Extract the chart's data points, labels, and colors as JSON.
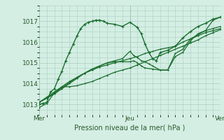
{
  "background_color": "#d4eee4",
  "grid_color": "#aacfbe",
  "line_color": "#1a6e2e",
  "marker_color": "#1a6e2e",
  "xlabel": "Pression niveau de la mer( hPa )",
  "ylim": [
    1012.5,
    1017.75
  ],
  "xlim": [
    0,
    48
  ],
  "yticks": [
    1013,
    1014,
    1015,
    1016,
    1017
  ],
  "xtick_positions": [
    0,
    24,
    48
  ],
  "xtick_labels": [
    "Mer",
    "Jeu",
    "Ven"
  ],
  "series": [
    {
      "points": [
        [
          0,
          1013.0
        ],
        [
          1,
          1013.05
        ],
        [
          2,
          1013.1
        ],
        [
          3,
          1013.6
        ],
        [
          4,
          1013.75
        ],
        [
          5,
          1014.2
        ],
        [
          6,
          1014.6
        ],
        [
          7,
          1015.1
        ],
        [
          8,
          1015.5
        ],
        [
          9,
          1015.9
        ],
        [
          10,
          1016.3
        ],
        [
          11,
          1016.65
        ],
        [
          12,
          1016.85
        ],
        [
          13,
          1016.95
        ],
        [
          14,
          1017.0
        ],
        [
          15,
          1017.05
        ],
        [
          16,
          1017.05
        ],
        [
          17,
          1017.0
        ],
        [
          18,
          1016.9
        ],
        [
          20,
          1016.85
        ],
        [
          22,
          1016.75
        ],
        [
          24,
          1016.95
        ],
        [
          26,
          1016.7
        ],
        [
          27,
          1016.4
        ],
        [
          28,
          1015.9
        ],
        [
          29,
          1015.5
        ],
        [
          30,
          1015.2
        ],
        [
          31,
          1015.1
        ],
        [
          32,
          1015.5
        ],
        [
          34,
          1015.6
        ],
        [
          36,
          1015.8
        ],
        [
          38,
          1016.2
        ],
        [
          40,
          1016.5
        ],
        [
          42,
          1016.75
        ],
        [
          44,
          1016.9
        ],
        [
          46,
          1017.1
        ],
        [
          48,
          1017.2
        ]
      ],
      "linewidth": 1.0,
      "markersize": 3
    },
    {
      "points": [
        [
          0,
          1012.85
        ],
        [
          2,
          1013.05
        ],
        [
          4,
          1013.55
        ],
        [
          6,
          1013.85
        ],
        [
          8,
          1013.85
        ],
        [
          10,
          1013.9
        ],
        [
          12,
          1014.0
        ],
        [
          14,
          1014.1
        ],
        [
          16,
          1014.25
        ],
        [
          18,
          1014.4
        ],
        [
          20,
          1014.55
        ],
        [
          22,
          1014.65
        ],
        [
          24,
          1014.75
        ],
        [
          26,
          1014.9
        ],
        [
          28,
          1015.05
        ],
        [
          30,
          1015.2
        ],
        [
          32,
          1015.35
        ],
        [
          34,
          1015.5
        ],
        [
          36,
          1015.65
        ],
        [
          38,
          1015.8
        ],
        [
          40,
          1015.95
        ],
        [
          42,
          1016.1
        ],
        [
          44,
          1016.3
        ],
        [
          46,
          1016.45
        ],
        [
          48,
          1016.6
        ]
      ],
      "linewidth": 0.9,
      "markersize": 2
    },
    {
      "points": [
        [
          0,
          1013.1
        ],
        [
          2,
          1013.35
        ],
        [
          4,
          1013.6
        ],
        [
          6,
          1013.85
        ],
        [
          8,
          1014.1
        ],
        [
          10,
          1014.3
        ],
        [
          12,
          1014.5
        ],
        [
          14,
          1014.65
        ],
        [
          16,
          1014.8
        ],
        [
          18,
          1014.9
        ],
        [
          20,
          1015.0
        ],
        [
          22,
          1015.1
        ],
        [
          24,
          1015.2
        ],
        [
          26,
          1015.3
        ],
        [
          28,
          1015.45
        ],
        [
          30,
          1015.55
        ],
        [
          32,
          1015.65
        ],
        [
          34,
          1015.72
        ],
        [
          36,
          1015.8
        ],
        [
          38,
          1016.0
        ],
        [
          40,
          1016.15
        ],
        [
          42,
          1016.3
        ],
        [
          44,
          1016.45
        ],
        [
          46,
          1016.55
        ],
        [
          48,
          1016.65
        ]
      ],
      "linewidth": 0.9,
      "markersize": 2
    },
    {
      "points": [
        [
          0,
          1013.1
        ],
        [
          2,
          1013.3
        ],
        [
          4,
          1013.5
        ],
        [
          6,
          1013.75
        ],
        [
          8,
          1014.0
        ],
        [
          10,
          1014.25
        ],
        [
          12,
          1014.5
        ],
        [
          14,
          1014.7
        ],
        [
          16,
          1014.85
        ],
        [
          18,
          1015.0
        ],
        [
          20,
          1015.05
        ],
        [
          22,
          1015.05
        ],
        [
          24,
          1015.05
        ],
        [
          25,
          1015.1
        ],
        [
          26,
          1015.0
        ],
        [
          27,
          1014.85
        ],
        [
          28,
          1014.75
        ],
        [
          30,
          1014.7
        ],
        [
          32,
          1014.65
        ],
        [
          34,
          1014.65
        ],
        [
          36,
          1015.3
        ],
        [
          38,
          1015.5
        ],
        [
          40,
          1016.05
        ],
        [
          42,
          1016.4
        ],
        [
          44,
          1016.55
        ],
        [
          46,
          1016.65
        ],
        [
          48,
          1016.75
        ]
      ],
      "linewidth": 0.9,
      "markersize": 2
    },
    {
      "points": [
        [
          0,
          1013.1
        ],
        [
          2,
          1013.3
        ],
        [
          4,
          1013.55
        ],
        [
          6,
          1013.8
        ],
        [
          8,
          1014.05
        ],
        [
          10,
          1014.3
        ],
        [
          12,
          1014.5
        ],
        [
          14,
          1014.7
        ],
        [
          16,
          1014.85
        ],
        [
          18,
          1015.0
        ],
        [
          20,
          1015.1
        ],
        [
          22,
          1015.2
        ],
        [
          24,
          1015.55
        ],
        [
          25,
          1015.35
        ],
        [
          26,
          1015.25
        ],
        [
          27,
          1015.1
        ],
        [
          28,
          1015.05
        ],
        [
          29,
          1014.95
        ],
        [
          30,
          1014.85
        ],
        [
          32,
          1014.65
        ],
        [
          34,
          1014.65
        ],
        [
          36,
          1015.45
        ],
        [
          38,
          1015.65
        ],
        [
          40,
          1016.15
        ],
        [
          44,
          1016.55
        ],
        [
          46,
          1017.05
        ],
        [
          48,
          1017.2
        ]
      ],
      "linewidth": 0.9,
      "markersize": 2
    }
  ]
}
